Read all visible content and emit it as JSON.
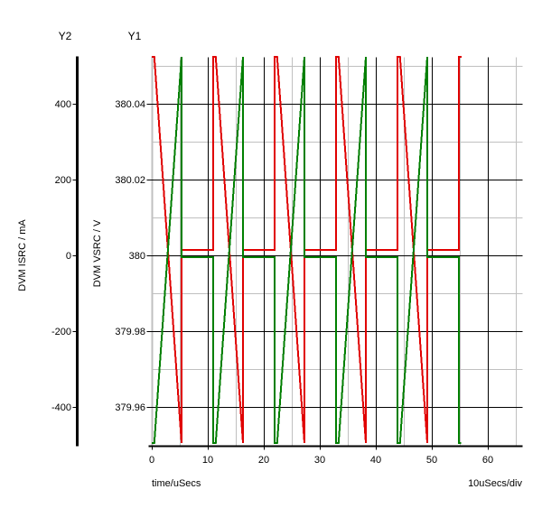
{
  "titles": {
    "y2_axis_title": "Y2",
    "y1_axis_title": "Y1",
    "y2_label": "DVM ISRC / mA",
    "y1_label": "DVM VSRC / V",
    "x_label": "time/uSecs",
    "x_scale": "10uSecs/div"
  },
  "colors": {
    "vsrc_trace": "#e00000",
    "isrc_trace": "#007f00",
    "major_grid": "#000000",
    "minor_grid": "#c0c0c0",
    "y1_axis_line": "#c0c0c0",
    "y2_axis_line": "#000000",
    "text": "#000000",
    "background": "#ffffff"
  },
  "chart_data": {
    "type": "line",
    "title": "",
    "grid": "on",
    "legend": "none",
    "x_axis": {
      "label": "time/uSecs",
      "per_div": "10uSecs/div",
      "range": [
        0,
        66.13
      ],
      "major_ticks": [
        0,
        10,
        20,
        30,
        40,
        50,
        60
      ],
      "tick_labels": [
        "0",
        "10",
        "20",
        "30",
        "40",
        "50",
        "60"
      ],
      "minor_ticks": [
        5,
        15,
        25,
        35,
        45,
        55,
        65
      ]
    },
    "y1_axis": {
      "title": "Y1",
      "label": "DVM VSRC / V",
      "range": [
        379.9505,
        380.0524
      ],
      "major_ticks": [
        380.04,
        380.02,
        380,
        379.98,
        379.96
      ],
      "tick_labels": [
        "380.04",
        "380.02",
        "380",
        "379.98",
        "379.96"
      ],
      "minor_ticks": [
        380.05,
        380.03,
        380.01,
        379.99,
        379.97
      ]
    },
    "y2_axis": {
      "title": "Y2",
      "label": "DVM ISRC / mA",
      "range": [
        -495.2,
        523.8
      ],
      "major_ticks": [
        400,
        200,
        0,
        -200,
        -400
      ],
      "tick_labels": [
        "400",
        "200",
        "0",
        "-200",
        "-400"
      ]
    },
    "series": [
      {
        "name": "DVM VSRC",
        "axis": "y1",
        "color": "#e00000",
        "points": [
          [
            0,
            380.0524
          ],
          [
            0.45,
            380.0524
          ],
          [
            5.32,
            379.9505
          ],
          [
            5.32,
            380.0014
          ],
          [
            10.97,
            380.0014
          ],
          [
            10.97,
            380.0524
          ],
          [
            11.42,
            380.0524
          ],
          [
            16.29,
            379.9505
          ],
          [
            16.29,
            380.0014
          ],
          [
            21.94,
            380.0014
          ],
          [
            21.94,
            380.0524
          ],
          [
            22.39,
            380.0524
          ],
          [
            27.26,
            379.9505
          ],
          [
            27.26,
            380.0014
          ],
          [
            32.9,
            380.0014
          ],
          [
            32.9,
            380.0524
          ],
          [
            33.35,
            380.0524
          ],
          [
            38.22,
            379.9505
          ],
          [
            38.22,
            380.0014
          ],
          [
            43.87,
            380.0014
          ],
          [
            43.87,
            380.0524
          ],
          [
            44.32,
            380.0524
          ],
          [
            49.19,
            379.9505
          ],
          [
            49.19,
            380.0014
          ],
          [
            54.84,
            380.0014
          ],
          [
            54.84,
            380.0524
          ],
          [
            55.3,
            380.0524
          ]
        ]
      },
      {
        "name": "DVM ISRC",
        "axis": "y2",
        "color": "#007f00",
        "points": [
          [
            0,
            -495
          ],
          [
            0.45,
            -495
          ],
          [
            5.32,
            524
          ],
          [
            5.32,
            -5
          ],
          [
            10.97,
            -5
          ],
          [
            10.97,
            -495
          ],
          [
            11.42,
            -495
          ],
          [
            16.29,
            524
          ],
          [
            16.29,
            -5
          ],
          [
            21.94,
            -5
          ],
          [
            21.94,
            -495
          ],
          [
            22.39,
            -495
          ],
          [
            27.26,
            524
          ],
          [
            27.26,
            -5
          ],
          [
            32.9,
            -5
          ],
          [
            32.9,
            -495
          ],
          [
            33.35,
            -495
          ],
          [
            38.22,
            524
          ],
          [
            38.22,
            -5
          ],
          [
            43.87,
            -5
          ],
          [
            43.87,
            -495
          ],
          [
            44.32,
            -495
          ],
          [
            49.19,
            524
          ],
          [
            49.19,
            -5
          ],
          [
            54.84,
            -5
          ],
          [
            54.84,
            -495
          ],
          [
            55.25,
            -495
          ]
        ]
      }
    ]
  }
}
